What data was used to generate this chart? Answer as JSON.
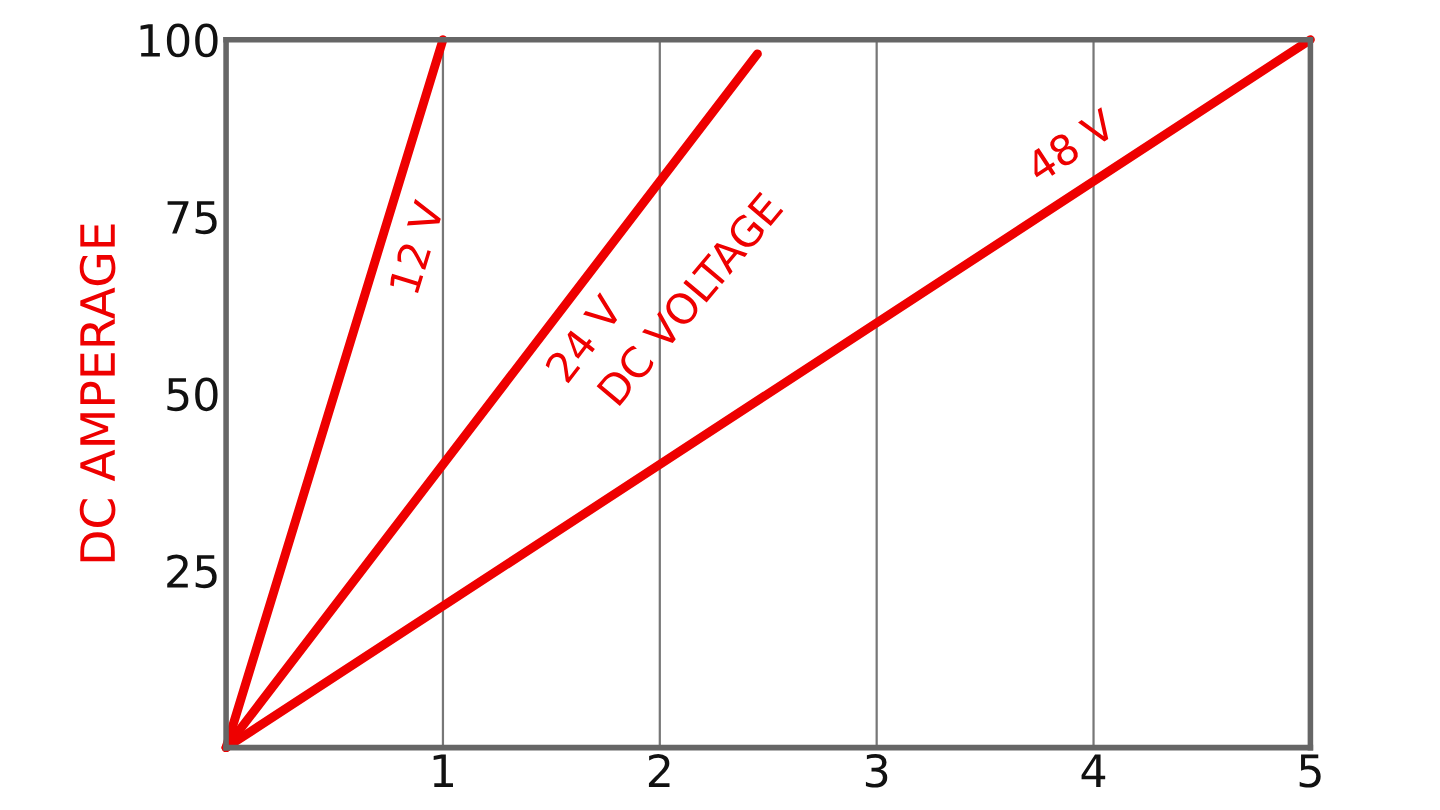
{
  "chart_data": {
    "type": "line",
    "xlabel": "DC VOLTAGE",
    "ylabel": "DC AMPERAGE",
    "series": [
      {
        "name": "12 V",
        "color": "#ee0000",
        "x": [
          0,
          1.0
        ],
        "values": [
          0,
          100
        ]
      },
      {
        "name": "24 V",
        "color": "#ee0000",
        "x": [
          0,
          2.45
        ],
        "values": [
          0,
          98
        ]
      },
      {
        "name": "48 V",
        "color": "#ee0000",
        "x": [
          0,
          5
        ],
        "values": [
          0,
          100
        ]
      }
    ],
    "xlim": [
      0,
      5
    ],
    "ylim": [
      0,
      100
    ],
    "xticks": [
      1,
      2,
      3,
      4,
      5
    ],
    "yticks": [
      25,
      50,
      75,
      100
    ],
    "grid": "x",
    "line_style": "solid",
    "marker": "none"
  }
}
